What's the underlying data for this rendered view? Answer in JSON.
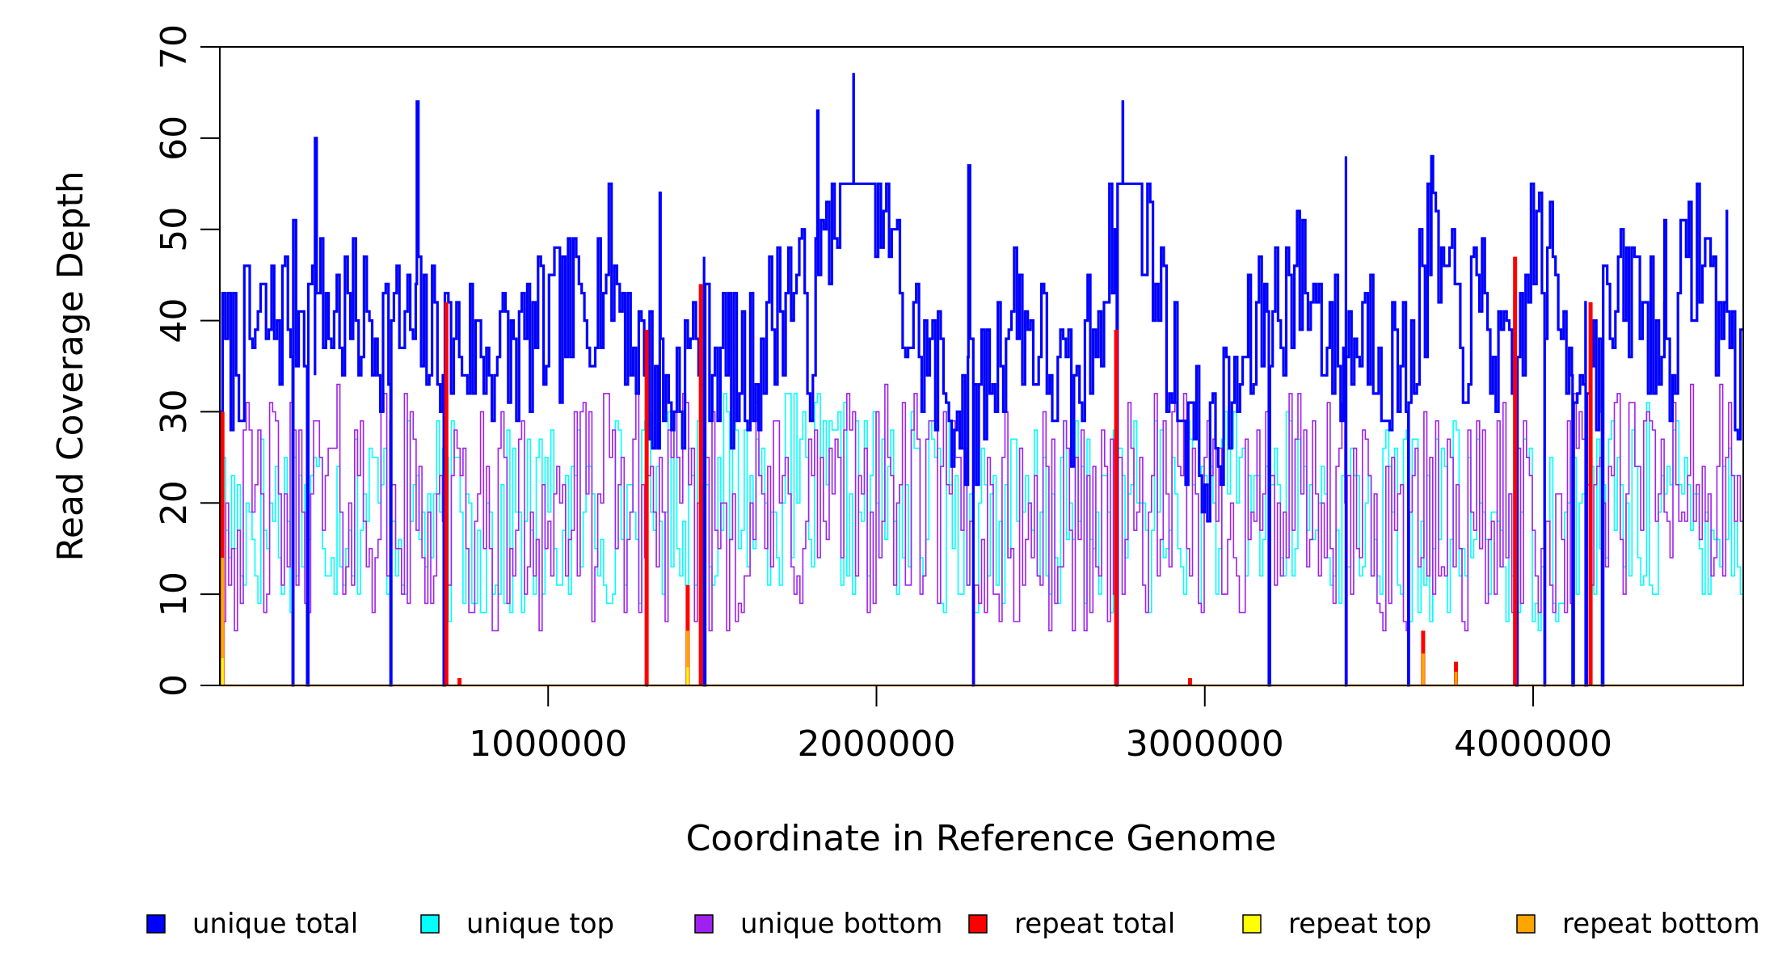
{
  "chart_data": {
    "type": "line",
    "title": "",
    "xlabel": "Coordinate in Reference Genome",
    "ylabel": "Read Coverage Depth",
    "xlim": [
      0,
      4640000
    ],
    "ylim": [
      0,
      70
    ],
    "x_ticks": [
      {
        "value": 1000000,
        "label": "1000000"
      },
      {
        "value": 2000000,
        "label": "2000000"
      },
      {
        "value": 3000000,
        "label": "3000000"
      },
      {
        "value": 4000000,
        "label": "4000000"
      }
    ],
    "y_ticks": [
      {
        "value": 0,
        "label": "0"
      },
      {
        "value": 10,
        "label": "10"
      },
      {
        "value": 20,
        "label": "20"
      },
      {
        "value": 30,
        "label": "30"
      },
      {
        "value": 40,
        "label": "40"
      },
      {
        "value": 50,
        "label": "50"
      },
      {
        "value": 60,
        "label": "60"
      },
      {
        "value": 70,
        "label": "70"
      }
    ],
    "legend": [
      {
        "label": "unique total",
        "color": "#0000ff"
      },
      {
        "label": "unique top",
        "color": "#00ffff"
      },
      {
        "label": "unique bottom",
        "color": "#a020f0"
      },
      {
        "label": "repeat total",
        "color": "#ff0000"
      },
      {
        "label": "repeat top",
        "color": "#ffff00"
      },
      {
        "label": "repeat bottom",
        "color": "#ffa500"
      }
    ],
    "series": [
      {
        "name": "unique total",
        "color": "#0000ff",
        "style": "step",
        "x": [
          0,
          220000,
          430000,
          640000,
          880000,
          1080000,
          1190000,
          1290000,
          1360000,
          1470000,
          1590000,
          1750000,
          1800000,
          1930000,
          2090000,
          2200000,
          2290000,
          2420000,
          2600000,
          2700000,
          2760000,
          2900000,
          3000000,
          3180000,
          3300000,
          3410000,
          3500000,
          3600000,
          3690000,
          3780000,
          3850000,
          3930000,
          4000000,
          4100000,
          4200000,
          4300000,
          4400000,
          4500000,
          4640000
        ],
        "y": [
          35,
          42,
          40,
          38,
          36,
          41,
          46,
          35,
          31,
          39,
          33,
          45,
          38,
          67,
          40,
          33,
          29,
          42,
          30,
          46,
          64,
          35,
          23,
          41,
          45,
          36,
          40,
          33,
          48,
          38,
          42,
          30,
          50,
          38,
          37,
          44,
          36,
          49,
          32
        ],
        "peaks": [
          {
            "x": 290000,
            "y": 60
          },
          {
            "x": 600000,
            "y": 64
          },
          {
            "x": 1340000,
            "y": 54
          },
          {
            "x": 1820000,
            "y": 63
          },
          {
            "x": 1930000,
            "y": 67
          },
          {
            "x": 2280000,
            "y": 57
          },
          {
            "x": 2750000,
            "y": 64
          },
          {
            "x": 3430000,
            "y": 58
          },
          {
            "x": 3690000,
            "y": 58
          },
          {
            "x": 4400000,
            "y": 51
          },
          {
            "x": 4590000,
            "y": 52
          }
        ],
        "drops_to_zero": [
          222000,
          266000,
          520000,
          682000,
          1300000,
          1475000,
          2295000,
          2732000,
          3195000,
          3430000,
          3620000,
          3950000,
          4035000,
          4120000,
          4160000,
          4210000
        ]
      },
      {
        "name": "unique top",
        "color": "#00ffff",
        "style": "step",
        "x": [
          0,
          400000,
          800000,
          1200000,
          1600000,
          2000000,
          2400000,
          2800000,
          3200000,
          3600000,
          4000000,
          4400000,
          4640000
        ],
        "y": [
          18,
          20,
          17,
          19,
          22,
          20,
          18,
          19,
          20,
          18,
          17,
          20,
          19
        ]
      },
      {
        "name": "unique bottom",
        "color": "#a020f0",
        "style": "step",
        "x": [
          0,
          400000,
          800000,
          1200000,
          1600000,
          2000000,
          2400000,
          2800000,
          3200000,
          3600000,
          4000000,
          4400000,
          4640000
        ],
        "y": [
          18,
          21,
          17,
          20,
          18,
          21,
          17,
          19,
          20,
          17,
          19,
          22,
          20
        ]
      },
      {
        "name": "repeat total",
        "color": "#ff0000",
        "style": "spikes",
        "x": [
          8000,
          690000,
          730000,
          1300000,
          1425000,
          1465000,
          2730000,
          2955000,
          3665000,
          3765000,
          3945000,
          4175000
        ],
        "y": [
          30,
          42,
          0.8,
          39,
          11,
          44,
          39,
          0.8,
          6,
          2.6,
          47,
          42
        ]
      },
      {
        "name": "repeat top",
        "color": "#ffff00",
        "style": "spikes",
        "x": [
          8000,
          1425000
        ],
        "y": [
          3,
          2
        ]
      },
      {
        "name": "repeat bottom",
        "color": "#ffa500",
        "style": "spikes",
        "x": [
          8000,
          1425000,
          3665000,
          3765000
        ],
        "y": [
          14,
          6,
          3.5,
          1.5
        ]
      }
    ]
  }
}
